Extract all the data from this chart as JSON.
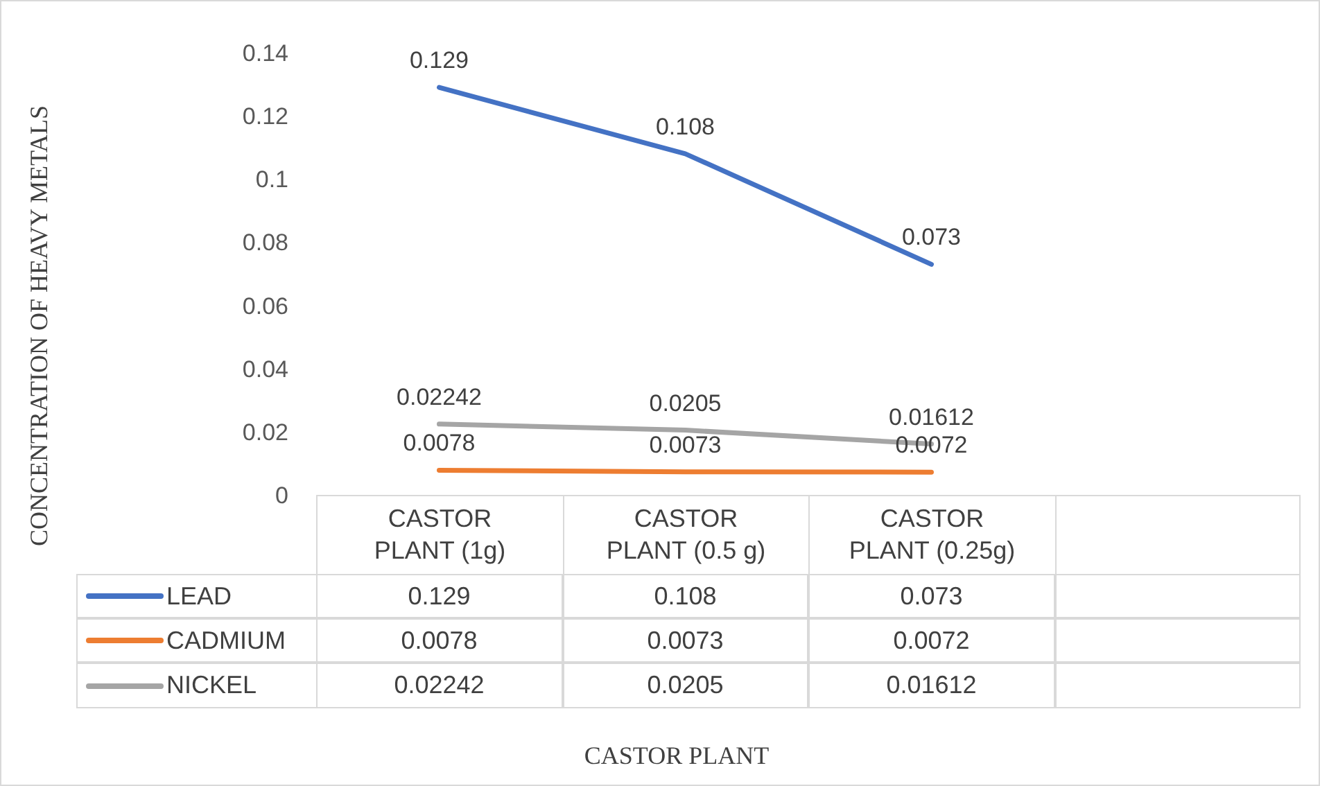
{
  "chart_data": {
    "type": "line",
    "annotations": [
      "CONCENTRATION OF HEAVY METALS",
      "CASTOR PLANT",
      {
        "text": "0.129",
        "x": "CASTOR PLANT (1g)",
        "y": 0.129
      },
      {
        "text": "0.108",
        "x": "CASTOR PLANT (0.5 g)",
        "y": 0.108
      },
      {
        "text": "0.073",
        "x": "CASTOR PLANT (0.25g)",
        "y": 0.073
      },
      {
        "text": "0.0078",
        "x": "CASTOR PLANT (1g)",
        "y": 0.0078
      },
      {
        "text": "0.0073",
        "x": "CASTOR PLANT (0.5 g)",
        "y": 0.0073
      },
      {
        "text": "0.0072",
        "x": "CASTOR PLANT (0.25g)",
        "y": 0.0072
      },
      {
        "text": "0.02242",
        "x": "CASTOR PLANT (1g)",
        "y": 0.02242
      },
      {
        "text": "0.0205",
        "x": "CASTOR PLANT (0.5 g)",
        "y": 0.0205
      },
      {
        "text": "0.01612",
        "x": "CASTOR PLANT (0.25g)",
        "y": 0.01612
      }
    ],
    "categories": [
      "CASTOR PLANT (1g)",
      "CASTOR PLANT (0.5 g)",
      "CASTOR PLANT (0.25g)",
      null
    ],
    "series": [
      {
        "name": "LEAD",
        "color": "#4472c4",
        "values": [
          0.129,
          0.108,
          0.073,
          null
        ]
      },
      {
        "name": "CADMIUM",
        "color": "#ed7d31",
        "values": [
          0.0078,
          0.0073,
          0.0072,
          null
        ]
      },
      {
        "name": "NICKEL",
        "color": "#a5a5a5",
        "values": [
          0.02242,
          0.0205,
          0.01612,
          null
        ]
      }
    ],
    "ylim": [
      0,
      0.14
    ],
    "yticks": [
      0,
      0.02,
      0.04,
      0.06,
      0.08,
      0.1,
      0.12,
      0.14
    ],
    "grid": false,
    "legend": "bottom",
    "marker": "none",
    "line_style": "solid",
    "data_labels": true
  }
}
